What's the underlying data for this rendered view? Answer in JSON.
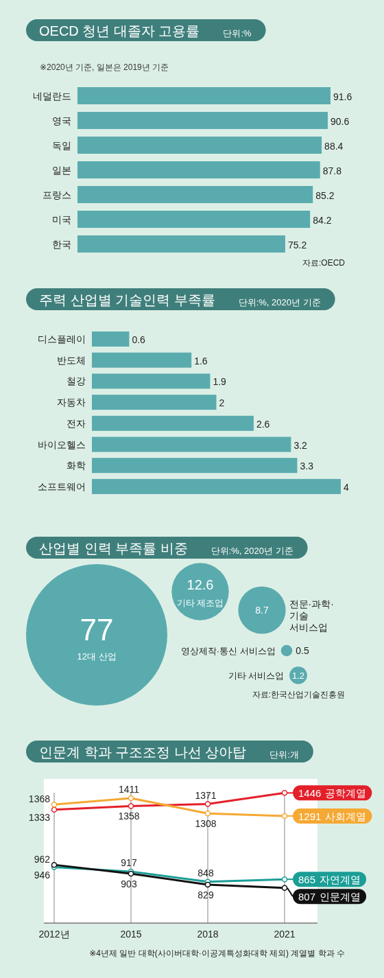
{
  "chart_data": [
    {
      "type": "bar",
      "orientation": "horizontal",
      "title": "OECD 청년 대졸자 고용률",
      "subtitle": "단위:%",
      "categories": [
        "네덜란드",
        "영국",
        "독일",
        "일본",
        "프랑스",
        "미국",
        "한국"
      ],
      "values": [
        91.6,
        90.6,
        88.4,
        87.8,
        85.2,
        84.2,
        75.2
      ],
      "color": "#5aabae",
      "data_labels": true,
      "annotations": [
        "※2020년 기준, 일본은 2019년 기준",
        "자료:OECD"
      ]
    },
    {
      "type": "bar",
      "orientation": "horizontal",
      "title": "주력 산업별 기술인력 부족률",
      "subtitle": "단위:%, 2020년 기준",
      "categories": [
        "디스플레이",
        "반도체",
        "철강",
        "자동차",
        "전자",
        "바이오헬스",
        "화학",
        "소프트웨어"
      ],
      "values": [
        0.6,
        1.6,
        1.9,
        2,
        2.6,
        3.2,
        3.3,
        4
      ],
      "color": "#5aabae",
      "data_labels": true
    },
    {
      "type": "other",
      "title": "산업별 인력 부족률 비중",
      "subtitle": "단위:%, 2020년 기준",
      "categories": [
        "12대 산업",
        "기타 제조업",
        "전문·과학·기술 서비스업",
        "영상제작·통신 서비스업",
        "기타 서비스업"
      ],
      "values": [
        77,
        12.6,
        8.7,
        0.5,
        1.2
      ],
      "color": "#5aabae",
      "data_labels": true,
      "annotations": [
        "자료:한국산업기술진흥원"
      ]
    },
    {
      "type": "line",
      "title": "인문계 학과 구조조정 나선 상아탑",
      "subtitle": "단위:개",
      "categories": [
        "2012년",
        "2015",
        "2018",
        "2021"
      ],
      "ylim": [
        570,
        1540
      ],
      "grid": "x",
      "marker": "circle",
      "data_labels": true,
      "series": [
        {
          "name": "공학계열",
          "color": "#e3202a",
          "values": [
            1333,
            1358,
            1371,
            1446
          ]
        },
        {
          "name": "사회계열",
          "color": "#f5a833",
          "values": [
            1368,
            1411,
            1308,
            1291
          ]
        },
        {
          "name": "자연계열",
          "color": "#1a9e96",
          "values": [
            946,
            917,
            848,
            865
          ]
        },
        {
          "name": "인문계열",
          "color": "#111111",
          "values": [
            962,
            903,
            829,
            807
          ]
        }
      ],
      "annotations": [
        "※4년제 일반 대학(사이버대학·이공계특성화대학 제외) 계열별 학과 수"
      ]
    }
  ]
}
